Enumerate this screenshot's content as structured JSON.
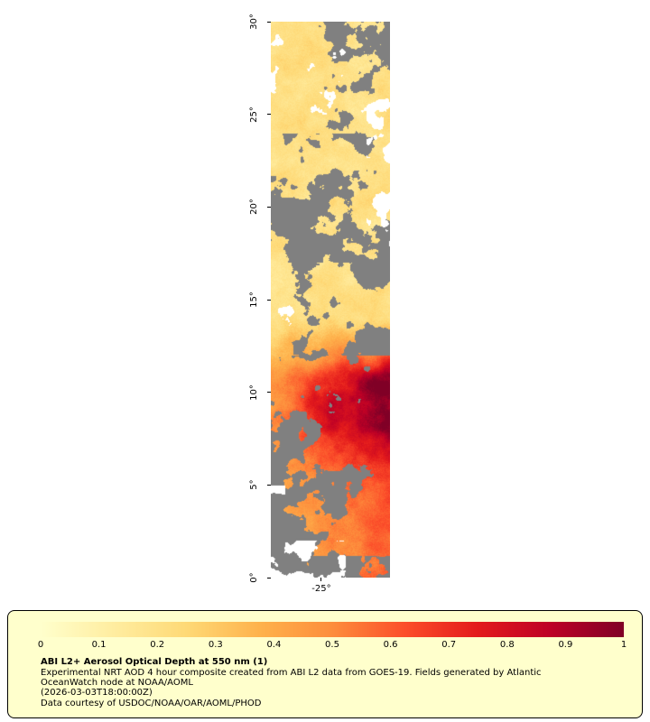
{
  "map": {
    "y_axis_ticks": [
      "30°",
      "25°",
      "20°",
      "15°",
      "10°",
      "5°",
      "0°"
    ],
    "x_axis_tick": "-25°"
  },
  "legend": {
    "colorbar_ticks": [
      "0",
      "0.1",
      "0.2",
      "0.3",
      "0.4",
      "0.5",
      "0.6",
      "0.7",
      "0.8",
      "0.9",
      "1"
    ],
    "colorbar_range": [
      0,
      1
    ],
    "title": "ABI L2+ Aerosol Optical Depth at 550 nm (1)",
    "description_line1": "Experimental NRT AOD 4 hour composite created from ABI L2 data from GOES-19. Fields generated by Atlantic",
    "description_line2": "OceanWatch node at NOAA/AOML",
    "timestamp": "(2026-03-03T18:00:00Z)",
    "credit": "Data courtesy of USDOC/NOAA/OAR/AOML/PHOD"
  },
  "colors": {
    "page_background": "#ffffff",
    "legend_background": "#ffffcc",
    "missing_data_gray": "#808080",
    "colormap": [
      "#ffffcc",
      "#ffeda0",
      "#fed976",
      "#feb24c",
      "#fd8d3c",
      "#fc4e2a",
      "#e31a1c",
      "#bd0026",
      "#800026"
    ]
  }
}
